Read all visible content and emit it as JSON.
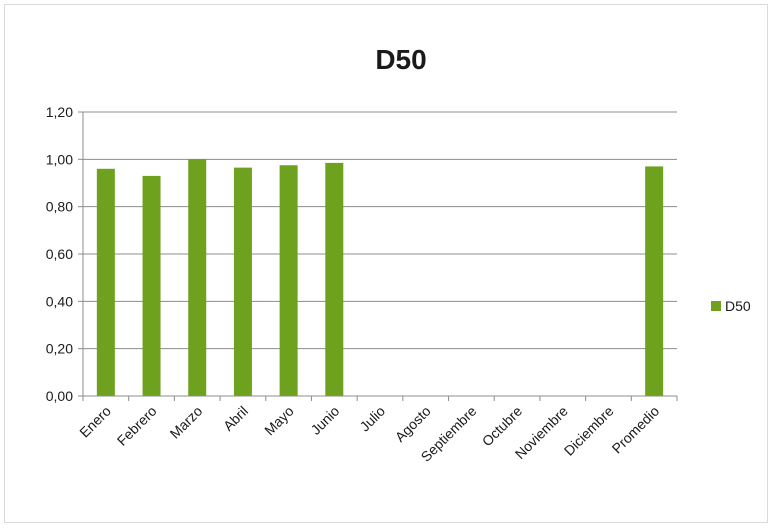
{
  "chart_data": {
    "type": "bar",
    "title": "D50",
    "categories": [
      "Enero",
      "Febrero",
      "Marzo",
      "Abril",
      "Mayo",
      "Junio",
      "Julio",
      "Agosto",
      "Septiembre",
      "Octubre",
      "Noviembre",
      "Diciembre",
      "Promedio"
    ],
    "series": [
      {
        "name": "D50",
        "values": [
          0.96,
          0.93,
          1.0,
          0.965,
          0.975,
          0.985,
          null,
          null,
          null,
          null,
          null,
          null,
          0.97
        ],
        "color": "#6ea11e"
      }
    ],
    "yticks": [
      "0,00",
      "0,20",
      "0,40",
      "0,60",
      "0,80",
      "1,00",
      "1,20"
    ],
    "ylim": [
      0,
      1.2
    ],
    "grid": true,
    "legend": "right"
  }
}
